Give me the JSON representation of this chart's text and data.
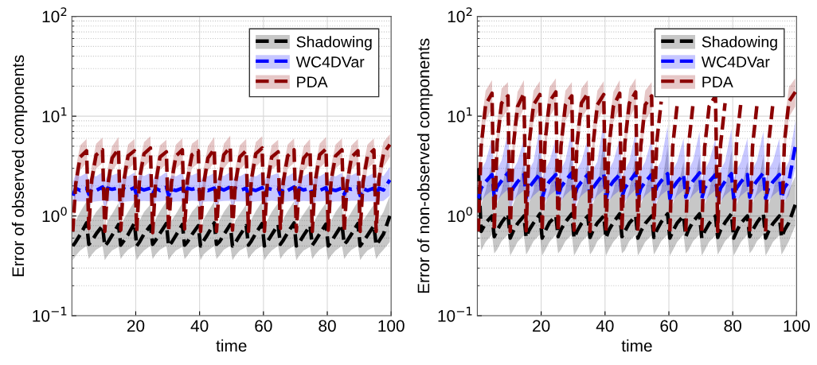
{
  "chart_data": [
    {
      "type": "line",
      "xlabel": "time",
      "ylabel": "Error of observed components",
      "log": "y",
      "grid": true,
      "legend": "top right",
      "line_style": "dashed",
      "marker": "none",
      "xlim": [
        0,
        100
      ],
      "xticks": [
        20,
        40,
        60,
        80,
        100
      ],
      "ylim": [
        0.1,
        100
      ],
      "yticks": [
        {
          "value": 0.1,
          "label": "10$^{−1}$"
        },
        {
          "value": 1,
          "label": "10$^{0}$"
        },
        {
          "value": 10,
          "label": "10$^{1}$"
        },
        {
          "value": 100,
          "label": "10$^{2}$"
        }
      ],
      "x": [
        0.3,
        1.2,
        2.6,
        4.6,
        5.3,
        6.2,
        7.6,
        9.6,
        10.3,
        11.2,
        12.6,
        14.6,
        15.3,
        16.2,
        17.6,
        19.6,
        20.3,
        21.2,
        22.6,
        24.6,
        25.3,
        26.2,
        27.6,
        29.6,
        30.3,
        31.2,
        32.6,
        34.6,
        35.3,
        36.2,
        37.6,
        39.6,
        40.3,
        41.2,
        42.6,
        44.6,
        45.3,
        46.2,
        47.6,
        49.6,
        50.3,
        51.2,
        52.6,
        54.6,
        55.3,
        56.2,
        57.6,
        59.6,
        60.3,
        61.2,
        62.6,
        64.6,
        65.3,
        66.2,
        67.6,
        69.6,
        70.3,
        71.2,
        72.6,
        74.6,
        75.3,
        76.2,
        77.6,
        79.6,
        80.3,
        81.2,
        82.6,
        84.6,
        85.3,
        86.2,
        87.6,
        89.6,
        90.3,
        91.2,
        92.6,
        94.6,
        95.3,
        96.2,
        97.6,
        99.6
      ],
      "series": [
        {
          "name": "Shadowing",
          "color": "#000000",
          "values": [
            0.5,
            0.55,
            0.65,
            0.85,
            0.52,
            0.56,
            0.66,
            0.8,
            0.5,
            0.54,
            0.64,
            0.82,
            0.51,
            0.56,
            0.65,
            0.85,
            0.5,
            0.55,
            0.66,
            0.8,
            0.52,
            0.57,
            0.67,
            0.84,
            0.5,
            0.54,
            0.64,
            0.82,
            0.51,
            0.55,
            0.65,
            0.8,
            0.5,
            0.56,
            0.66,
            0.85,
            0.52,
            0.55,
            0.65,
            0.82,
            0.5,
            0.54,
            0.64,
            0.8,
            0.51,
            0.56,
            0.67,
            0.84,
            0.5,
            0.55,
            0.65,
            0.82,
            0.52,
            0.57,
            0.68,
            0.85,
            0.5,
            0.54,
            0.64,
            0.8,
            0.51,
            0.56,
            0.66,
            0.83,
            0.5,
            0.55,
            0.65,
            0.82,
            0.52,
            0.56,
            0.66,
            0.84,
            0.5,
            0.55,
            0.64,
            0.8,
            0.51,
            0.56,
            0.66,
            1.0
          ],
          "lower": [
            0.36,
            0.4,
            0.45,
            0.5,
            0.37,
            0.41,
            0.46,
            0.5,
            0.36,
            0.4,
            0.45,
            0.49,
            0.37,
            0.41,
            0.46,
            0.5,
            0.36,
            0.4,
            0.45,
            0.5,
            0.37,
            0.41,
            0.46,
            0.5,
            0.36,
            0.4,
            0.45,
            0.49,
            0.37,
            0.4,
            0.46,
            0.5,
            0.36,
            0.41,
            0.45,
            0.5,
            0.37,
            0.4,
            0.46,
            0.5,
            0.36,
            0.4,
            0.45,
            0.49,
            0.37,
            0.41,
            0.46,
            0.5,
            0.36,
            0.4,
            0.45,
            0.5,
            0.37,
            0.41,
            0.46,
            0.5,
            0.36,
            0.4,
            0.45,
            0.49,
            0.37,
            0.41,
            0.46,
            0.5,
            0.36,
            0.4,
            0.45,
            0.5,
            0.37,
            0.41,
            0.46,
            0.5,
            0.36,
            0.4,
            0.45,
            0.49,
            0.37,
            0.41,
            0.46,
            0.55
          ],
          "upper": [
            0.7,
            0.9,
            1.1,
            1.4,
            0.72,
            0.92,
            1.1,
            1.3,
            0.7,
            0.9,
            1.05,
            1.35,
            0.71,
            0.92,
            1.1,
            1.4,
            0.7,
            0.9,
            1.1,
            1.3,
            0.72,
            0.93,
            1.12,
            1.4,
            0.7,
            0.9,
            1.05,
            1.35,
            0.71,
            0.9,
            1.1,
            1.3,
            0.7,
            0.92,
            1.1,
            1.4,
            0.72,
            0.9,
            1.1,
            1.35,
            0.7,
            0.9,
            1.05,
            1.3,
            0.71,
            0.92,
            1.12,
            1.4,
            0.7,
            0.9,
            1.1,
            1.35,
            0.72,
            0.93,
            1.12,
            1.4,
            0.7,
            0.9,
            1.05,
            1.3,
            0.71,
            0.92,
            1.1,
            1.35,
            0.7,
            0.9,
            1.1,
            1.35,
            0.72,
            0.92,
            1.1,
            1.4,
            0.7,
            0.9,
            1.05,
            1.3,
            0.71,
            0.92,
            1.1,
            1.6
          ]
        },
        {
          "name": "WC4DVar",
          "color": "#0000ff",
          "values": [
            1.6,
            1.9,
            1.8,
            1.9,
            1.65,
            1.85,
            1.8,
            1.95,
            1.6,
            1.9,
            1.85,
            1.9,
            1.62,
            1.88,
            1.8,
            1.92,
            1.6,
            1.9,
            1.82,
            1.9,
            1.65,
            1.9,
            1.8,
            1.95,
            1.6,
            1.85,
            1.8,
            1.9,
            1.62,
            1.9,
            1.85,
            1.92,
            1.6,
            1.88,
            1.8,
            1.9,
            1.65,
            1.9,
            1.82,
            1.95,
            1.6,
            1.9,
            1.8,
            1.9,
            1.62,
            1.85,
            1.8,
            1.92,
            1.6,
            1.9,
            1.85,
            1.9,
            1.65,
            1.88,
            1.8,
            1.95,
            1.6,
            1.9,
            1.82,
            1.9,
            1.62,
            1.9,
            1.8,
            1.92,
            1.6,
            1.85,
            1.8,
            1.9,
            1.65,
            1.9,
            1.85,
            1.95,
            1.6,
            1.88,
            1.8,
            1.9,
            1.62,
            1.9,
            1.82,
            2.3
          ],
          "lower": [
            1.2,
            1.4,
            1.4,
            1.4,
            1.22,
            1.38,
            1.4,
            1.42,
            1.2,
            1.4,
            1.42,
            1.4,
            1.21,
            1.39,
            1.4,
            1.41,
            1.2,
            1.4,
            1.41,
            1.4,
            1.22,
            1.4,
            1.4,
            1.42,
            1.2,
            1.38,
            1.4,
            1.4,
            1.21,
            1.4,
            1.42,
            1.41,
            1.2,
            1.39,
            1.4,
            1.4,
            1.22,
            1.4,
            1.41,
            1.42,
            1.2,
            1.4,
            1.4,
            1.4,
            1.21,
            1.38,
            1.4,
            1.41,
            1.2,
            1.4,
            1.42,
            1.4,
            1.22,
            1.39,
            1.4,
            1.42,
            1.2,
            1.4,
            1.41,
            1.4,
            1.21,
            1.4,
            1.4,
            1.41,
            1.2,
            1.38,
            1.4,
            1.4,
            1.22,
            1.4,
            1.42,
            1.42,
            1.2,
            1.39,
            1.4,
            1.4,
            1.21,
            1.4,
            1.41,
            1.6
          ],
          "upper": [
            2.2,
            2.6,
            2.5,
            2.7,
            2.25,
            2.55,
            2.5,
            2.75,
            2.2,
            2.6,
            2.55,
            2.7,
            2.22,
            2.58,
            2.5,
            2.72,
            2.2,
            2.6,
            2.52,
            2.7,
            2.25,
            2.6,
            2.5,
            2.75,
            2.2,
            2.55,
            2.5,
            2.7,
            2.22,
            2.6,
            2.55,
            2.72,
            2.2,
            2.58,
            2.5,
            2.7,
            2.25,
            2.6,
            2.52,
            2.75,
            2.2,
            2.6,
            2.5,
            2.7,
            2.22,
            2.55,
            2.5,
            2.72,
            2.2,
            2.6,
            2.55,
            2.7,
            2.25,
            2.58,
            2.5,
            2.75,
            2.2,
            2.6,
            2.52,
            2.7,
            2.22,
            2.6,
            2.5,
            2.72,
            2.2,
            2.55,
            2.5,
            2.7,
            2.25,
            2.6,
            2.55,
            2.75,
            2.2,
            2.58,
            2.5,
            2.7,
            2.22,
            2.6,
            2.52,
            3.1
          ]
        },
        {
          "name": "PDA",
          "color": "#8b0000",
          "values": [
            0.7,
            2.1,
            3.9,
            4.5,
            0.75,
            2.3,
            4.1,
            4.6,
            0.7,
            2.0,
            3.8,
            4.7,
            0.72,
            2.2,
            4.0,
            4.5,
            0.7,
            2.4,
            4.2,
            4.8,
            0.68,
            2.1,
            3.9,
            4.4,
            0.7,
            2.2,
            4.0,
            4.6,
            0.74,
            2.3,
            4.1,
            4.5,
            0.7,
            2.0,
            3.8,
            4.7,
            0.7,
            2.2,
            4.1,
            4.9,
            0.72,
            2.1,
            3.9,
            4.5,
            0.7,
            2.3,
            4.2,
            4.8,
            0.7,
            2.1,
            3.9,
            4.4,
            0.75,
            2.2,
            4.0,
            4.6,
            0.7,
            2.0,
            3.8,
            4.5,
            0.7,
            2.2,
            4.1,
            4.7,
            0.72,
            2.3,
            4.0,
            4.6,
            0.7,
            2.1,
            3.9,
            4.5,
            0.7,
            2.2,
            4.0,
            4.6,
            0.7,
            2.4,
            4.2,
            5.2
          ],
          "lower": [
            0.6,
            1.6,
            2.9,
            3.4,
            0.62,
            1.7,
            3.0,
            3.4,
            0.6,
            1.5,
            2.8,
            3.5,
            0.61,
            1.6,
            2.9,
            3.4,
            0.6,
            1.8,
            3.1,
            3.6,
            0.58,
            1.6,
            2.9,
            3.3,
            0.6,
            1.6,
            3.0,
            3.4,
            0.62,
            1.7,
            3.0,
            3.4,
            0.6,
            1.5,
            2.8,
            3.5,
            0.6,
            1.6,
            3.0,
            3.6,
            0.61,
            1.6,
            2.9,
            3.4,
            0.6,
            1.7,
            3.1,
            3.6,
            0.6,
            1.6,
            2.9,
            3.3,
            0.62,
            1.6,
            3.0,
            3.4,
            0.6,
            1.5,
            2.8,
            3.4,
            0.6,
            1.6,
            3.0,
            3.5,
            0.61,
            1.7,
            3.0,
            3.4,
            0.6,
            1.6,
            2.9,
            3.4,
            0.6,
            1.6,
            3.0,
            3.4,
            0.6,
            1.8,
            3.1,
            3.9
          ],
          "upper": [
            0.85,
            3.0,
            5.1,
            5.9,
            0.9,
            3.2,
            5.3,
            6.1,
            0.85,
            2.9,
            5.0,
            6.2,
            0.87,
            3.1,
            5.2,
            5.9,
            0.85,
            3.3,
            5.5,
            6.3,
            0.83,
            3.0,
            5.1,
            5.8,
            0.85,
            3.1,
            5.2,
            6.0,
            0.9,
            3.2,
            5.3,
            5.9,
            0.85,
            2.9,
            5.0,
            6.2,
            0.85,
            3.1,
            5.3,
            6.4,
            0.87,
            3.0,
            5.1,
            5.9,
            0.85,
            3.2,
            5.5,
            6.3,
            0.85,
            3.0,
            5.1,
            5.8,
            0.9,
            3.1,
            5.2,
            6.0,
            0.85,
            2.9,
            5.0,
            5.9,
            0.85,
            3.1,
            5.3,
            6.2,
            0.87,
            3.2,
            5.2,
            6.0,
            0.85,
            3.0,
            5.1,
            5.9,
            0.85,
            3.1,
            5.2,
            6.0,
            0.85,
            3.3,
            5.5,
            6.6
          ]
        }
      ]
    },
    {
      "type": "line",
      "xlabel": "time",
      "ylabel": "Error of non-observed components",
      "log": "y",
      "grid": true,
      "legend": "top right",
      "line_style": "dashed",
      "marker": "none",
      "xlim": [
        0,
        100
      ],
      "xticks": [
        20,
        40,
        60,
        80,
        100
      ],
      "ylim": [
        0.1,
        100
      ],
      "yticks": [
        {
          "value": 0.1,
          "label": "10$^{−1}$"
        },
        {
          "value": 1,
          "label": "10$^{0}$"
        },
        {
          "value": 10,
          "label": "10$^{1}$"
        },
        {
          "value": 100,
          "label": "10$^{2}$"
        }
      ],
      "x": [
        0.3,
        1.2,
        2.6,
        4.6,
        5.3,
        6.2,
        7.6,
        9.6,
        10.3,
        11.2,
        12.6,
        14.6,
        15.3,
        16.2,
        17.6,
        19.6,
        20.3,
        21.2,
        22.6,
        24.6,
        25.3,
        26.2,
        27.6,
        29.6,
        30.3,
        31.2,
        32.6,
        34.6,
        35.3,
        36.2,
        37.6,
        39.6,
        40.3,
        41.2,
        42.6,
        44.6,
        45.3,
        46.2,
        47.6,
        49.6,
        50.3,
        51.2,
        52.6,
        54.6,
        55.3,
        56.2,
        57.6,
        59.6,
        60.3,
        61.2,
        62.6,
        64.6,
        65.3,
        66.2,
        67.6,
        69.6,
        70.3,
        71.2,
        72.6,
        74.6,
        75.3,
        76.2,
        77.6,
        79.6,
        80.3,
        81.2,
        82.6,
        84.6,
        85.3,
        86.2,
        87.6,
        89.6,
        90.3,
        91.2,
        92.6,
        94.6,
        95.3,
        96.2,
        97.6,
        99.6
      ],
      "series": [
        {
          "name": "Shadowing",
          "color": "#000000",
          "values": [
            3.0,
            0.7,
            0.85,
            1.0,
            0.62,
            0.72,
            0.86,
            1.05,
            0.6,
            0.7,
            0.84,
            1.0,
            0.61,
            0.72,
            0.85,
            1.05,
            0.6,
            0.7,
            0.86,
            1.0,
            0.62,
            0.73,
            0.87,
            1.05,
            0.6,
            0.7,
            0.84,
            1.0,
            0.61,
            0.71,
            0.85,
            1.0,
            0.6,
            0.72,
            0.86,
            1.05,
            0.62,
            0.7,
            0.85,
            1.0,
            0.6,
            0.7,
            0.84,
            1.0,
            0.61,
            0.72,
            0.87,
            1.05,
            0.6,
            0.7,
            0.85,
            1.0,
            0.62,
            0.73,
            0.88,
            1.05,
            0.6,
            0.7,
            0.84,
            1.0,
            0.61,
            0.72,
            0.86,
            1.05,
            0.6,
            0.7,
            0.85,
            1.0,
            0.62,
            0.72,
            0.86,
            1.05,
            0.6,
            0.7,
            0.84,
            1.0,
            0.61,
            0.72,
            0.86,
            1.3
          ],
          "lower": [
            1.5,
            0.45,
            0.55,
            0.65,
            0.42,
            0.46,
            0.56,
            0.65,
            0.4,
            0.45,
            0.55,
            0.64,
            0.41,
            0.46,
            0.56,
            0.65,
            0.4,
            0.45,
            0.55,
            0.65,
            0.42,
            0.46,
            0.56,
            0.65,
            0.4,
            0.45,
            0.55,
            0.64,
            0.41,
            0.45,
            0.56,
            0.65,
            0.4,
            0.46,
            0.55,
            0.65,
            0.42,
            0.45,
            0.56,
            0.65,
            0.4,
            0.45,
            0.55,
            0.64,
            0.41,
            0.46,
            0.56,
            0.65,
            0.4,
            0.45,
            0.55,
            0.65,
            0.42,
            0.46,
            0.56,
            0.65,
            0.4,
            0.45,
            0.55,
            0.64,
            0.41,
            0.46,
            0.56,
            0.65,
            0.4,
            0.45,
            0.55,
            0.65,
            0.42,
            0.46,
            0.56,
            0.65,
            0.4,
            0.45,
            0.55,
            0.64,
            0.41,
            0.46,
            0.56,
            0.8
          ],
          "upper": [
            5.0,
            1.3,
            1.8,
            3.5,
            1.0,
            1.35,
            1.8,
            4.0,
            1.0,
            1.3,
            1.75,
            3.5,
            1.02,
            1.35,
            1.8,
            5.0,
            1.0,
            1.3,
            1.8,
            3.5,
            1.02,
            1.35,
            1.85,
            4.5,
            1.0,
            1.3,
            1.75,
            3.5,
            1.02,
            1.3,
            1.8,
            6.0,
            1.0,
            1.35,
            1.8,
            3.5,
            1.02,
            1.3,
            1.8,
            4.0,
            1.0,
            1.3,
            1.75,
            3.5,
            1.02,
            1.35,
            1.85,
            5.0,
            1.0,
            1.3,
            1.8,
            3.5,
            1.02,
            1.35,
            1.85,
            4.0,
            1.0,
            1.3,
            1.75,
            3.5,
            1.02,
            1.35,
            1.8,
            4.5,
            1.0,
            1.3,
            1.8,
            3.5,
            1.02,
            1.35,
            1.8,
            4.0,
            1.0,
            1.3,
            1.75,
            3.5,
            1.02,
            1.35,
            1.8,
            2.5
          ]
        },
        {
          "name": "WC4DVar",
          "color": "#0000ff",
          "values": [
            1.5,
            1.9,
            2.2,
            2.6,
            1.55,
            1.95,
            2.25,
            2.7,
            1.5,
            1.9,
            2.2,
            2.6,
            1.52,
            1.92,
            2.2,
            2.65,
            1.5,
            1.9,
            2.22,
            2.6,
            1.55,
            1.95,
            2.25,
            2.7,
            1.5,
            1.9,
            2.2,
            2.6,
            1.52,
            1.9,
            2.2,
            2.65,
            1.5,
            1.92,
            2.22,
            2.6,
            1.55,
            1.9,
            2.2,
            2.7,
            1.5,
            1.9,
            2.2,
            2.6,
            1.52,
            1.95,
            2.25,
            2.65,
            1.5,
            1.9,
            2.2,
            2.6,
            1.55,
            1.92,
            2.25,
            2.7,
            1.5,
            1.9,
            2.2,
            2.6,
            1.52,
            1.9,
            2.22,
            2.65,
            1.5,
            1.9,
            2.2,
            2.6,
            1.55,
            1.95,
            2.25,
            2.7,
            1.5,
            1.9,
            2.2,
            2.6,
            1.52,
            1.92,
            2.22,
            5.0
          ],
          "lower": [
            1.1,
            1.4,
            1.6,
            1.8,
            1.12,
            1.42,
            1.62,
            1.85,
            1.1,
            1.4,
            1.6,
            1.8,
            1.11,
            1.41,
            1.6,
            1.82,
            1.1,
            1.4,
            1.61,
            1.8,
            1.12,
            1.42,
            1.62,
            1.85,
            1.1,
            1.4,
            1.6,
            1.8,
            1.11,
            1.4,
            1.6,
            1.82,
            1.1,
            1.41,
            1.61,
            1.8,
            1.12,
            1.4,
            1.6,
            1.85,
            1.1,
            1.4,
            1.6,
            1.8,
            1.11,
            1.42,
            1.62,
            1.82,
            1.1,
            1.4,
            1.6,
            1.8,
            1.12,
            1.41,
            1.62,
            1.85,
            1.1,
            1.4,
            1.6,
            1.8,
            1.11,
            1.4,
            1.61,
            1.82,
            1.1,
            1.4,
            1.6,
            1.8,
            1.12,
            1.42,
            1.62,
            1.85,
            1.1,
            1.4,
            1.6,
            1.8,
            1.11,
            1.41,
            1.61,
            3.0
          ],
          "upper": [
            2.3,
            2.9,
            3.5,
            6.0,
            2.35,
            2.95,
            3.6,
            7.0,
            2.3,
            2.9,
            3.5,
            6.0,
            2.32,
            2.92,
            3.5,
            8.0,
            2.3,
            2.9,
            3.52,
            6.0,
            2.35,
            2.95,
            3.6,
            7.5,
            2.3,
            2.9,
            3.5,
            6.0,
            2.32,
            2.9,
            3.5,
            9.0,
            2.3,
            2.92,
            3.52,
            6.0,
            2.35,
            2.9,
            3.5,
            7.0,
            2.3,
            2.9,
            3.5,
            6.0,
            2.32,
            2.95,
            3.6,
            8.0,
            2.3,
            2.9,
            3.5,
            6.0,
            2.35,
            2.92,
            3.6,
            7.0,
            2.3,
            2.9,
            3.5,
            6.0,
            2.32,
            2.9,
            3.52,
            7.5,
            2.3,
            2.9,
            3.5,
            6.0,
            2.35,
            2.95,
            3.6,
            7.0,
            2.3,
            2.9,
            3.5,
            6.0,
            2.32,
            2.92,
            3.52,
            9.0
          ]
        },
        {
          "name": "PDA",
          "color": "#8b0000",
          "values": [
            0.7,
            5.0,
            13,
            17,
            0.72,
            5.5,
            13.5,
            16,
            0.7,
            4.8,
            12.5,
            17,
            0.71,
            5.2,
            13,
            16.5,
            0.7,
            5.5,
            14,
            17.5,
            0.7,
            5.0,
            13,
            16,
            0.72,
            5.2,
            13.5,
            17,
            0.7,
            5.0,
            13,
            16.5,
            0.7,
            4.8,
            12.5,
            17,
            0.71,
            5.3,
            13.5,
            17.5,
            0.7,
            5.0,
            13,
            16,
            0.72,
            5.5,
            14,
            null,
            0.7,
            5.0,
            13,
            null,
            0.7,
            5.2,
            13.5,
            null,
            0.71,
            4.8,
            12.5,
            16,
            0.7,
            5.2,
            13.5,
            null,
            0.72,
            5.5,
            14,
            null,
            0.7,
            5.0,
            13,
            null,
            0.7,
            5.2,
            13.5,
            null,
            0.7,
            5.5,
            14,
            17.5
          ],
          "lower": [
            0.6,
            3.5,
            9.0,
            12,
            0.61,
            3.8,
            9.5,
            11.5,
            0.6,
            3.3,
            8.8,
            12,
            0.6,
            3.6,
            9.0,
            11.8,
            0.6,
            3.8,
            9.8,
            12.5,
            0.6,
            3.5,
            9.0,
            11.5,
            0.61,
            3.6,
            9.5,
            12,
            0.6,
            3.5,
            9.0,
            11.8,
            0.6,
            3.3,
            8.8,
            12,
            0.6,
            3.7,
            9.5,
            12.5,
            0.6,
            3.5,
            9.0,
            11.5,
            0.61,
            3.8,
            null,
            null,
            0.6,
            3.5,
            null,
            null,
            0.6,
            3.6,
            null,
            null,
            0.6,
            3.3,
            null,
            null,
            0.6,
            3.6,
            null,
            null,
            0.61,
            3.8,
            null,
            null,
            0.6,
            3.5,
            null,
            null,
            0.6,
            3.6,
            null,
            null,
            0.6,
            3.8,
            9.8,
            12.5
          ],
          "upper": [
            0.9,
            8.0,
            18,
            23,
            0.92,
            8.5,
            19,
            22,
            0.9,
            7.5,
            17.5,
            23,
            0.91,
            8.0,
            18,
            22.5,
            0.9,
            8.5,
            19.5,
            24,
            0.9,
            8.0,
            18,
            22,
            0.92,
            8.2,
            19,
            23,
            0.9,
            8.0,
            18,
            22.5,
            0.9,
            7.5,
            17.5,
            23,
            0.91,
            8.3,
            19,
            24,
            0.9,
            8.0,
            18,
            22,
            0.92,
            8.5,
            null,
            null,
            0.9,
            8.0,
            null,
            null,
            0.9,
            8.2,
            null,
            null,
            0.91,
            7.5,
            null,
            null,
            0.9,
            8.2,
            null,
            null,
            0.92,
            8.5,
            null,
            null,
            0.9,
            8.0,
            null,
            null,
            0.9,
            8.2,
            null,
            null,
            0.9,
            8.5,
            19.5,
            24
          ]
        }
      ]
    }
  ]
}
